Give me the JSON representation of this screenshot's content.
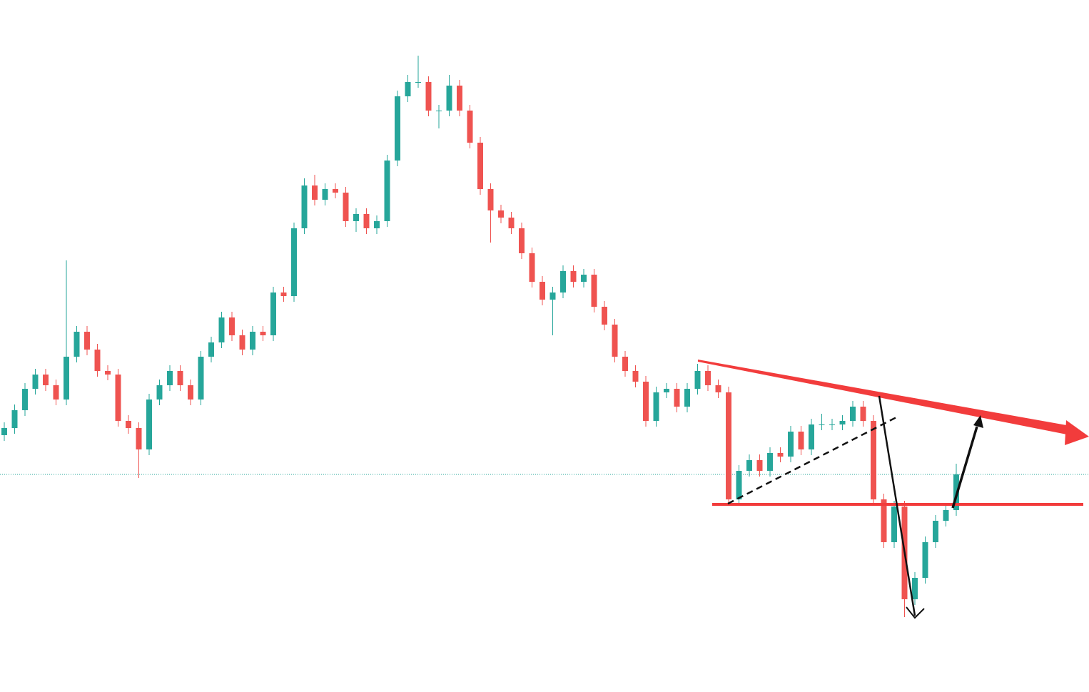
{
  "chart_data": {
    "type": "candlestick",
    "open": [
      360,
      370,
      395,
      425,
      445,
      430,
      410,
      470,
      505,
      480,
      450,
      445,
      380,
      370,
      340,
      410,
      430,
      450,
      430,
      410,
      470,
      490,
      525,
      500,
      480,
      505,
      500,
      560,
      555,
      650,
      710,
      690,
      705,
      700,
      660,
      670,
      650,
      660,
      745,
      835,
      855,
      855,
      815,
      815,
      850,
      815,
      770,
      705,
      675,
      665,
      650,
      615,
      575,
      550,
      560,
      590,
      575,
      585,
      540,
      515,
      470,
      450,
      435,
      380,
      420,
      425,
      400,
      425,
      450,
      430,
      420,
      270,
      310,
      325,
      310,
      335,
      330,
      365,
      340,
      375,
      375,
      375,
      380,
      400,
      380,
      270,
      210,
      260,
      130,
      160,
      210,
      240,
      255
    ],
    "high": [
      378,
      403,
      433,
      453,
      453,
      438,
      605,
      513,
      513,
      488,
      458,
      453,
      388,
      378,
      418,
      438,
      458,
      458,
      438,
      478,
      498,
      533,
      533,
      508,
      513,
      513,
      568,
      568,
      658,
      720,
      725,
      713,
      713,
      708,
      678,
      678,
      668,
      753,
      843,
      865,
      892,
      863,
      823,
      865,
      858,
      823,
      778,
      713,
      683,
      673,
      658,
      623,
      583,
      568,
      598,
      598,
      593,
      593,
      548,
      523,
      478,
      458,
      443,
      428,
      433,
      433,
      433,
      460,
      458,
      438,
      428,
      318,
      333,
      333,
      343,
      343,
      373,
      373,
      383,
      390,
      383,
      388,
      408,
      408,
      388,
      278,
      268,
      268,
      168,
      218,
      248,
      263,
      320
    ],
    "low": [
      352,
      362,
      387,
      417,
      422,
      402,
      402,
      462,
      472,
      442,
      437,
      372,
      362,
      300,
      332,
      402,
      422,
      422,
      402,
      402,
      462,
      482,
      492,
      472,
      472,
      492,
      492,
      547,
      547,
      642,
      682,
      682,
      692,
      652,
      645,
      642,
      642,
      652,
      737,
      827,
      847,
      807,
      790,
      807,
      807,
      762,
      697,
      630,
      657,
      642,
      607,
      567,
      542,
      500,
      552,
      567,
      567,
      532,
      507,
      462,
      442,
      427,
      372,
      372,
      412,
      392,
      392,
      417,
      422,
      412,
      262,
      262,
      302,
      302,
      302,
      322,
      322,
      332,
      332,
      367,
      367,
      367,
      372,
      372,
      262,
      202,
      202,
      105,
      122,
      152,
      202,
      232,
      247
    ],
    "close": [
      370,
      395,
      425,
      445,
      430,
      410,
      470,
      505,
      480,
      450,
      445,
      380,
      370,
      340,
      410,
      430,
      450,
      430,
      410,
      470,
      490,
      525,
      500,
      480,
      505,
      500,
      560,
      555,
      650,
      710,
      690,
      705,
      700,
      660,
      670,
      650,
      660,
      745,
      835,
      855,
      855,
      815,
      815,
      850,
      815,
      770,
      705,
      675,
      665,
      650,
      615,
      575,
      550,
      560,
      590,
      575,
      585,
      540,
      515,
      470,
      450,
      435,
      380,
      420,
      425,
      400,
      425,
      450,
      430,
      420,
      270,
      310,
      325,
      310,
      335,
      330,
      365,
      340,
      375,
      375,
      375,
      380,
      400,
      380,
      270,
      210,
      260,
      130,
      160,
      210,
      240,
      255,
      305
    ],
    "ylim": [
      0,
      970
    ],
    "up_color": "#26a69a",
    "down_color": "#ef5350"
  }
}
